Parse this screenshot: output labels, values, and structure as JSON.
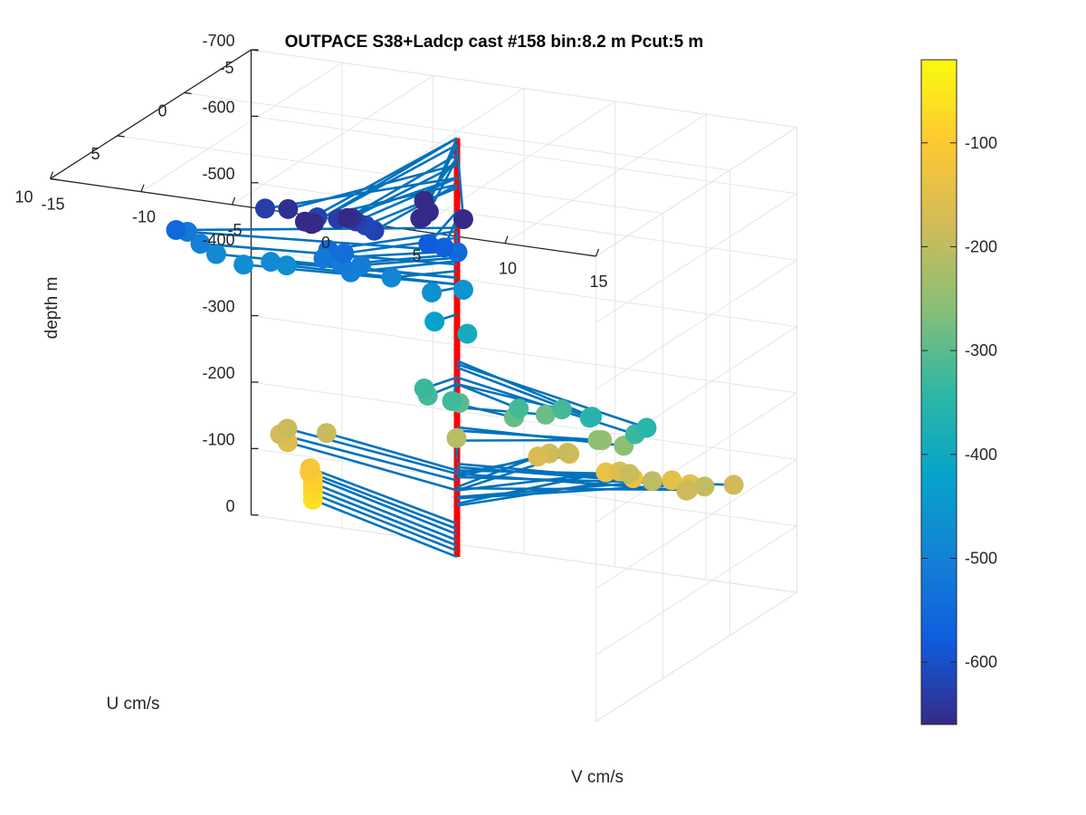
{
  "chart_data": {
    "type": "scatter",
    "title": "OUTPACE S38+Ladcp cast #158 bin:8.2 m  Pcut:5 m",
    "zlabel": "depth m",
    "xlabel": "V cm/s",
    "ylabel": "U cm/s",
    "z_ticks": [
      "0",
      "-100",
      "-200",
      "-300",
      "-400",
      "-500",
      "-600",
      "-700"
    ],
    "v_ticks": [
      "-15",
      "-10",
      "-5",
      "0",
      "5",
      "10",
      "15"
    ],
    "u_ticks": [
      "-5",
      "0",
      "5",
      "10"
    ],
    "zlim": [
      -700,
      0
    ],
    "vlim": [
      -15,
      15
    ],
    "ulim": [
      -5,
      10
    ],
    "grid": true,
    "colorbar": {
      "ticks": [
        "-100",
        "-200",
        "-300",
        "-400",
        "-500",
        "-600"
      ],
      "range": [
        -660,
        -20
      ],
      "colormap": "parula",
      "placement": "right"
    },
    "colors": {
      "vertical_line": "#ff0000",
      "vector_line": "#0072bd",
      "axis": "#262626",
      "grid": "#e6e6e6"
    },
    "points": [
      {
        "v": -10.5,
        "u": -3.5,
        "z": -60
      },
      {
        "v": -10.5,
        "u": -3.5,
        "z": -69
      },
      {
        "v": -10.5,
        "u": -3.5,
        "z": -77
      },
      {
        "v": -10.5,
        "u": -3.5,
        "z": -85
      },
      {
        "v": -10.5,
        "u": -3.5,
        "z": -94
      },
      {
        "v": -10.6,
        "u": -3.4,
        "z": -102
      },
      {
        "v": -10.5,
        "u": -3.3,
        "z": -110
      },
      {
        "v": -11,
        "u": -2.3,
        "z": -160
      },
      {
        "v": -11.2,
        "u": -2.0,
        "z": -175
      },
      {
        "v": -10.8,
        "u": -2.0,
        "z": -185
      },
      {
        "v": -8.5,
        "u": -1.8,
        "z": -190
      },
      {
        "v": -1.5,
        "u": -2.0,
        "z": -207
      },
      {
        "v": 4.5,
        "u": -5.0,
        "z": -140
      },
      {
        "v": 6,
        "u": -5.0,
        "z": -137
      },
      {
        "v": 2.5,
        "u": -5.0,
        "z": -160
      },
      {
        "v": 2.5,
        "u": -3.5,
        "z": -180
      },
      {
        "v": 6,
        "u": -4.0,
        "z": -160
      },
      {
        "v": 8.5,
        "u": -4.5,
        "z": -150
      },
      {
        "v": 9.5,
        "u": -4.5,
        "z": -148
      },
      {
        "v": 10.5,
        "u": -3.0,
        "z": -163
      },
      {
        "v": 8,
        "u": -2.0,
        "z": -190
      },
      {
        "v": 10,
        "u": -1.0,
        "z": -200
      },
      {
        "v": 13,
        "u": -3.0,
        "z": -180
      },
      {
        "v": 12.5,
        "u": -1.5,
        "z": -195
      },
      {
        "v": 11.5,
        "u": -1.5,
        "z": -185
      },
      {
        "v": 1.5,
        "u": -4.0,
        "z": -165
      },
      {
        "v": 3.5,
        "u": -3.5,
        "z": -185
      },
      {
        "v": 6.5,
        "u": -2.0,
        "z": -235
      },
      {
        "v": 7,
        "u": -1.0,
        "z": -250
      },
      {
        "v": 8.8,
        "u": -0.5,
        "z": -255
      },
      {
        "v": 3.5,
        "u": 0.5,
        "z": -290
      },
      {
        "v": 4.5,
        "u": -0.5,
        "z": -285
      },
      {
        "v": 0.5,
        "u": 0.5,
        "z": -300
      },
      {
        "v": 1.2,
        "u": 2.0,
        "z": -325
      },
      {
        "v": 4.5,
        "u": 1.5,
        "z": -320
      },
      {
        "v": 6.5,
        "u": 1.0,
        "z": -320
      },
      {
        "v": 9.5,
        "u": 3.0,
        "z": -345
      },
      {
        "v": 10,
        "u": 3.5,
        "z": -355
      },
      {
        "v": 12,
        "u": 3.0,
        "z": -330
      },
      {
        "v": 13,
        "u": 3.5,
        "z": -350
      },
      {
        "v": -0.5,
        "u": 1.5,
        "z": -320
      },
      {
        "v": -0.7,
        "u": 1.5,
        "z": -330
      },
      {
        "v": 0.2,
        "u": -0.5,
        "z": -390
      },
      {
        "v": -0.5,
        "u": 1.0,
        "z": -425
      },
      {
        "v": 0.2,
        "u": -0.2,
        "z": -460
      },
      {
        "v": -0.8,
        "u": 0.8,
        "z": -465
      },
      {
        "v": -2.5,
        "u": 1.5,
        "z": -490
      },
      {
        "v": -4,
        "u": 2.5,
        "z": -505
      },
      {
        "v": -4.5,
        "u": 2.5,
        "z": -515
      },
      {
        "v": -3.8,
        "u": 2.0,
        "z": -510
      },
      {
        "v": -4.5,
        "u": 3.5,
        "z": -550
      },
      {
        "v": -11,
        "u": 1.0,
        "z": -470
      },
      {
        "v": -12.5,
        "u": 1.0,
        "z": -480
      },
      {
        "v": -13,
        "u": 1.5,
        "z": -500
      },
      {
        "v": -13.5,
        "u": 1.8,
        "z": -520
      },
      {
        "v": -9,
        "u": 0.5,
        "z": -470
      },
      {
        "v": -9.5,
        "u": 1.0,
        "z": -480
      },
      {
        "v": -12.5,
        "u": 4.0,
        "z": -555
      },
      {
        "v": -5.5,
        "u": 2.5,
        "z": -520
      },
      {
        "v": -4,
        "u": 3.0,
        "z": -540
      },
      {
        "v": 1.5,
        "u": 2.0,
        "z": -550
      },
      {
        "v": 1.5,
        "u": 3.0,
        "z": -570
      },
      {
        "v": 1,
        "u": 3.5,
        "z": -580
      },
      {
        "v": -4,
        "u": 5.0,
        "z": -620
      },
      {
        "v": -6.5,
        "u": 5.5,
        "z": -630
      },
      {
        "v": -4.5,
        "u": 6.5,
        "z": -650
      },
      {
        "v": -2.5,
        "u": 5.5,
        "z": -630
      },
      {
        "v": -0.5,
        "u": 5.5,
        "z": -620
      },
      {
        "v": -1.5,
        "u": 4.8,
        "z": -615
      },
      {
        "v": -1.5,
        "u": 5.5,
        "z": -630
      },
      {
        "v": -1,
        "u": 6.5,
        "z": -650
      },
      {
        "v": -0.5,
        "u": 7.5,
        "z": -665
      },
      {
        "v": 1.5,
        "u": 4.5,
        "z": -660
      },
      {
        "v": 2.5,
        "u": 5.5,
        "z": -660
      },
      {
        "v": 3.5,
        "u": 7.5,
        "z": -680
      },
      {
        "v": 4,
        "u": 8.0,
        "z": -690
      },
      {
        "v": 5.5,
        "u": 7.0,
        "z": -680
      },
      {
        "v": -1,
        "u": 9.5,
        "z": -680
      },
      {
        "v": -1,
        "u": 10.0,
        "z": -690
      },
      {
        "v": -0.5,
        "u": 10.0,
        "z": -690
      }
    ]
  }
}
